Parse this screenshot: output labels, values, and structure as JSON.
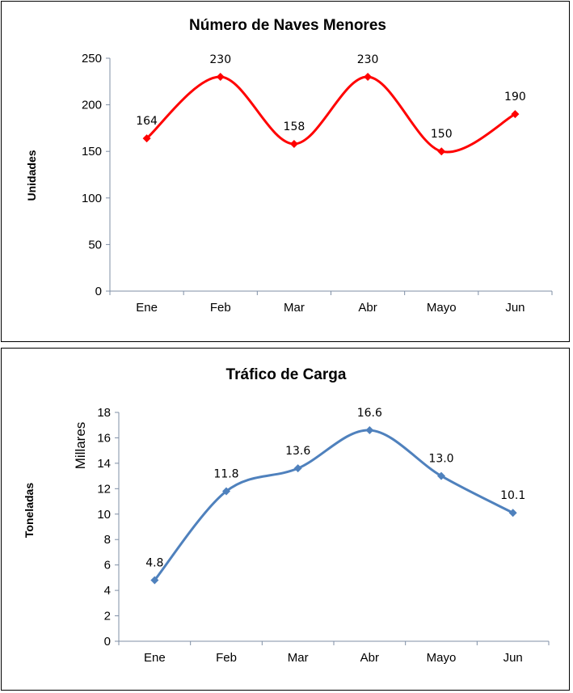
{
  "chart_data": [
    {
      "type": "line",
      "title": "Número de Naves Menores",
      "ylabel": "Unidades",
      "categories": [
        "Ene",
        "Feb",
        "Mar",
        "Abr",
        "Mayo",
        "Jun"
      ],
      "values": [
        164,
        230,
        158,
        230,
        150,
        190
      ],
      "data_labels": [
        "164",
        "230",
        "158",
        "230",
        "150",
        "190"
      ],
      "ylim": [
        0,
        250
      ],
      "yticks": [
        "0",
        "50",
        "100",
        "150",
        "200",
        "250"
      ],
      "smooth": true,
      "marker": "diamond",
      "color": "#ff0000",
      "grid": false,
      "legend": "none"
    },
    {
      "type": "line",
      "title": "Tráfico de Carga",
      "ylabel": "Toneladas",
      "unit_label": "Millares",
      "categories": [
        "Ene",
        "Feb",
        "Mar",
        "Abr",
        "Mayo",
        "Jun"
      ],
      "values": [
        4.8,
        11.8,
        13.6,
        16.6,
        13.0,
        10.1
      ],
      "data_labels": [
        "4.8",
        "11.8",
        "13.6",
        "16.6",
        "13.0",
        "10.1"
      ],
      "ylim": [
        0,
        18
      ],
      "yticks": [
        "0",
        "2",
        "4",
        "6",
        "8",
        "10",
        "12",
        "14",
        "16",
        "18"
      ],
      "smooth": true,
      "marker": "diamond",
      "color": "#4f81bd",
      "grid": false,
      "legend": "none"
    }
  ]
}
